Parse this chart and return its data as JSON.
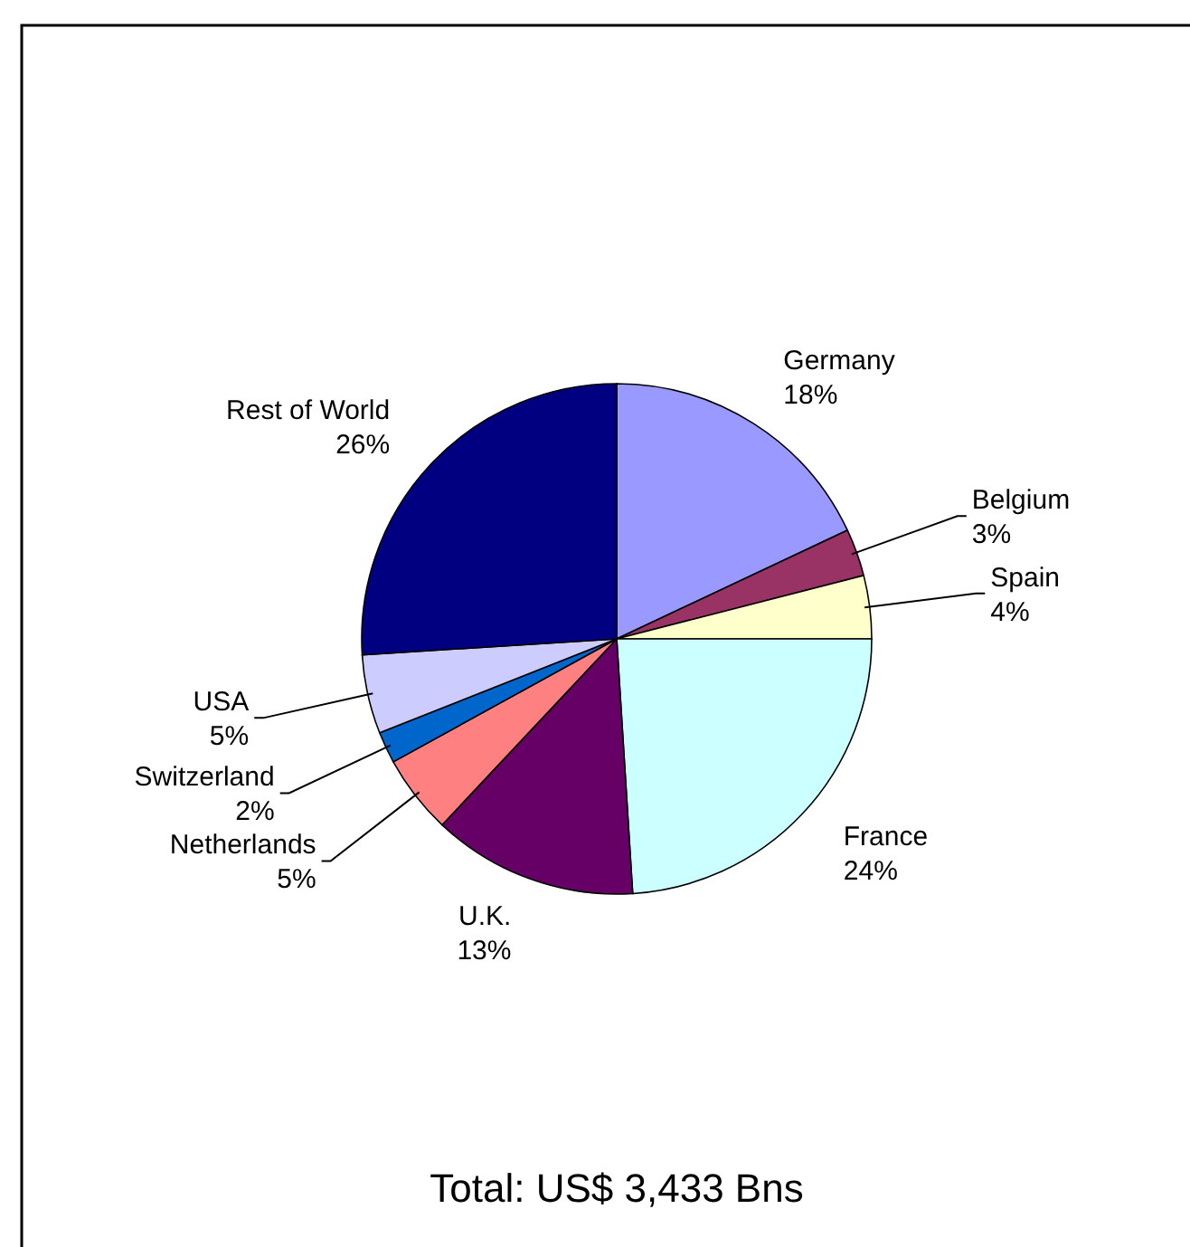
{
  "chart_data": {
    "type": "pie",
    "categories": [
      "Germany",
      "Belgium",
      "Spain",
      "France",
      "U.K.",
      "Netherlands",
      "Switzerland",
      "USA",
      "Rest of World"
    ],
    "values": [
      18,
      3,
      4,
      24,
      13,
      5,
      2,
      5,
      26
    ],
    "value_labels": [
      "18%",
      "3%",
      "4%",
      "24%",
      "13%",
      "5%",
      "2%",
      "5%",
      "26%"
    ],
    "colors": [
      "#9999ff",
      "#993366",
      "#ffffcc",
      "#ccffff",
      "#660066",
      "#ff8080",
      "#0066cc",
      "#ccccff",
      "#000080"
    ],
    "annotations": [
      "Total: US$ 3,433 Bns"
    ]
  }
}
